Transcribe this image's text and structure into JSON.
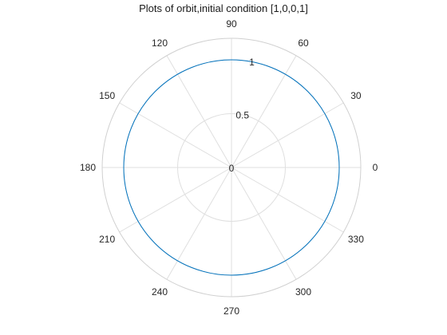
{
  "chart_data": {
    "type": "line",
    "coordinate_system": "polar",
    "title": "Plots of orbit,initial condition [1,0,0,1]",
    "theta_ticks": [
      "0",
      "30",
      "60",
      "90",
      "120",
      "150",
      "180",
      "210",
      "240",
      "270",
      "300",
      "330"
    ],
    "theta_tick_values_deg": [
      0,
      30,
      60,
      90,
      120,
      150,
      180,
      210,
      240,
      270,
      300,
      330
    ],
    "r_ticks": [
      "0",
      "0.5",
      "1"
    ],
    "r_tick_values": [
      0,
      0.5,
      1
    ],
    "rlim": [
      0,
      1.2
    ],
    "grid": true,
    "series": [
      {
        "color": "#0072bd",
        "theta_deg": [
          0,
          30,
          60,
          90,
          120,
          150,
          180,
          210,
          240,
          270,
          300,
          330,
          360
        ],
        "r": [
          1,
          1,
          1,
          1,
          1,
          1,
          1,
          1,
          1,
          1,
          1,
          1,
          1
        ]
      }
    ],
    "colors": {
      "grid": "#dfdfdf",
      "outer_ring": "#d0d0d0"
    }
  }
}
